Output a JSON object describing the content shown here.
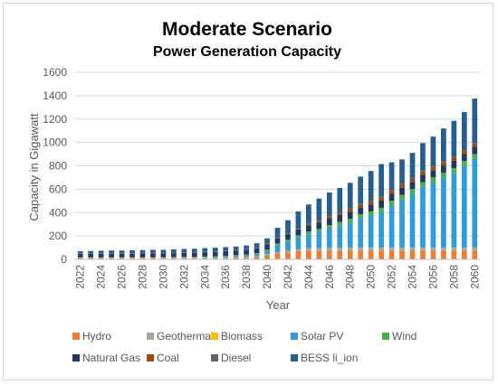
{
  "chart_data": {
    "type": "bar",
    "stacked": true,
    "title": "Moderate Scenario",
    "subtitle": "Power Generation Capacity",
    "xlabel": "Year",
    "ylabel": "Capacity in Gigawatt",
    "ylim": [
      0,
      1600
    ],
    "yticks": [
      0,
      200,
      400,
      600,
      800,
      1000,
      1200,
      1400,
      1600
    ],
    "grid": true,
    "legend_position": "bottom",
    "categories": [
      "2022",
      "2023",
      "2024",
      "2025",
      "2026",
      "2027",
      "2028",
      "2029",
      "2030",
      "2031",
      "2032",
      "2033",
      "2034",
      "2035",
      "2036",
      "2037",
      "2038",
      "2039",
      "2040",
      "2041",
      "2042",
      "2043",
      "2044",
      "2045",
      "2046",
      "2047",
      "2048",
      "2049",
      "2050",
      "2051",
      "2052",
      "2053",
      "2054",
      "2055",
      "2056",
      "2057",
      "2058",
      "2059",
      "2060"
    ],
    "xtick_labels": [
      "2022",
      "2024",
      "2026",
      "2028",
      "2030",
      "2032",
      "2034",
      "2036",
      "2038",
      "2040",
      "2042",
      "2044",
      "2046",
      "2048",
      "2050",
      "2052",
      "2054",
      "2056",
      "2058",
      "2060"
    ],
    "series": [
      {
        "name": "Hydro",
        "color": "#ED7D31",
        "values": [
          10,
          10,
          10,
          10,
          10,
          10,
          10,
          10,
          10,
          10,
          10,
          10,
          10,
          10,
          10,
          12,
          15,
          20,
          35,
          50,
          60,
          70,
          75,
          75,
          75,
          75,
          75,
          75,
          75,
          75,
          75,
          75,
          75,
          75,
          75,
          75,
          75,
          75,
          75
        ]
      },
      {
        "name": "Geothermal",
        "color": "#A5A5A5",
        "values": [
          3,
          3,
          3,
          3,
          3,
          3,
          3,
          3,
          3,
          3,
          3,
          3,
          3,
          3,
          5,
          5,
          5,
          7,
          8,
          10,
          12,
          15,
          18,
          20,
          22,
          25,
          25,
          25,
          25,
          25,
          25,
          25,
          25,
          25,
          25,
          25,
          25,
          25,
          25
        ]
      },
      {
        "name": "Biomass",
        "color": "#FFC000",
        "values": [
          1,
          1,
          1,
          1,
          1,
          1,
          1,
          1,
          1,
          1,
          1,
          1,
          1,
          1,
          1,
          1,
          1,
          1,
          1,
          1,
          1,
          1,
          1,
          1,
          1,
          1,
          1,
          1,
          1,
          1,
          1,
          1,
          1,
          1,
          1,
          1,
          1,
          1,
          1
        ]
      },
      {
        "name": "Solar PV",
        "color": "#2E9BDB",
        "values": [
          2,
          2,
          2,
          2,
          3,
          3,
          3,
          3,
          4,
          4,
          5,
          6,
          8,
          10,
          12,
          15,
          15,
          20,
          30,
          60,
          80,
          100,
          120,
          140,
          165,
          190,
          215,
          250,
          270,
          300,
          360,
          410,
          460,
          520,
          560,
          600,
          640,
          700,
          760
        ]
      },
      {
        "name": "Wind",
        "color": "#4BB043",
        "values": [
          1,
          1,
          1,
          1,
          1,
          1,
          1,
          1,
          1,
          2,
          2,
          2,
          3,
          3,
          3,
          3,
          5,
          5,
          10,
          15,
          15,
          20,
          25,
          25,
          30,
          30,
          32,
          35,
          38,
          40,
          40,
          40,
          40,
          40,
          40,
          40,
          40,
          40,
          40
        ]
      },
      {
        "name": "Natural Gas",
        "color": "#1F3864",
        "values": [
          30,
          30,
          30,
          30,
          31,
          31,
          32,
          32,
          33,
          33,
          34,
          35,
          36,
          37,
          38,
          38,
          40,
          42,
          45,
          45,
          48,
          50,
          52,
          55,
          55,
          58,
          60,
          60,
          60,
          62,
          62,
          62,
          62,
          62,
          62,
          62,
          62,
          62,
          62
        ]
      },
      {
        "name": "Coal",
        "color": "#9E480E",
        "values": [
          3,
          3,
          3,
          3,
          3,
          3,
          3,
          3,
          3,
          3,
          3,
          3,
          3,
          3,
          3,
          3,
          3,
          3,
          3,
          3,
          3,
          5,
          10,
          15,
          20,
          20,
          25,
          25,
          30,
          30,
          30,
          30,
          30,
          30,
          30,
          30,
          30,
          30,
          30
        ]
      },
      {
        "name": "Diesel",
        "color": "#636363",
        "values": [
          2,
          2,
          2,
          2,
          2,
          2,
          2,
          2,
          2,
          2,
          2,
          2,
          2,
          2,
          2,
          2,
          2,
          2,
          2,
          2,
          2,
          2,
          2,
          2,
          2,
          2,
          2,
          2,
          2,
          2,
          2,
          2,
          2,
          2,
          2,
          2,
          2,
          2,
          2
        ]
      },
      {
        "name": "BESS li_ion",
        "color": "#255E91",
        "values": [
          18,
          20,
          22,
          24,
          22,
          24,
          25,
          27,
          25,
          27,
          29,
          29,
          30,
          31,
          31,
          31,
          33,
          38,
          46,
          84,
          114,
          147,
          167,
          187,
          202,
          210,
          220,
          235,
          255,
          280,
          235,
          210,
          215,
          240,
          255,
          285,
          310,
          325,
          380
        ]
      }
    ]
  }
}
